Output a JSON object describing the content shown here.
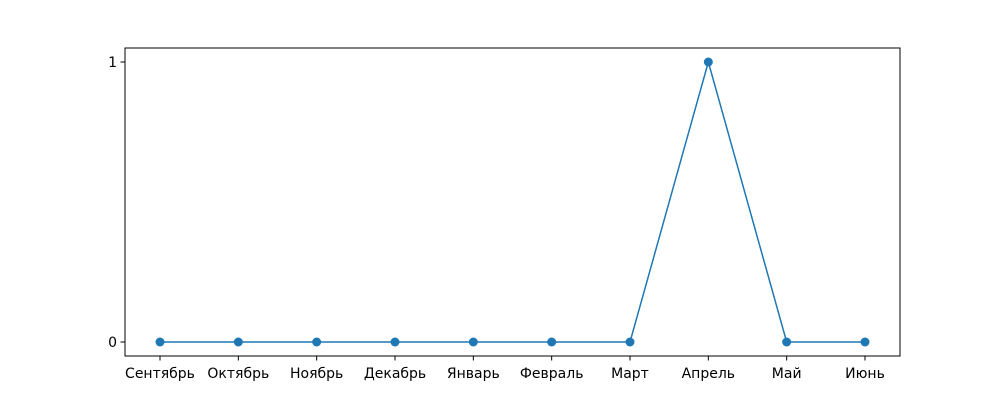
{
  "chart_data": {
    "type": "line",
    "categories": [
      "Сентябрь",
      "Октябрь",
      "Ноябрь",
      "Декабрь",
      "Январь",
      "Февраль",
      "Март",
      "Апрель",
      "Май",
      "Июнь"
    ],
    "values": [
      0,
      0,
      0,
      0,
      0,
      0,
      0,
      1,
      0,
      0
    ],
    "yticks": [
      0,
      1
    ],
    "ylim": [
      -0.05,
      1.05
    ],
    "grid": false,
    "color": "#1f77b4",
    "marker": "circle"
  }
}
